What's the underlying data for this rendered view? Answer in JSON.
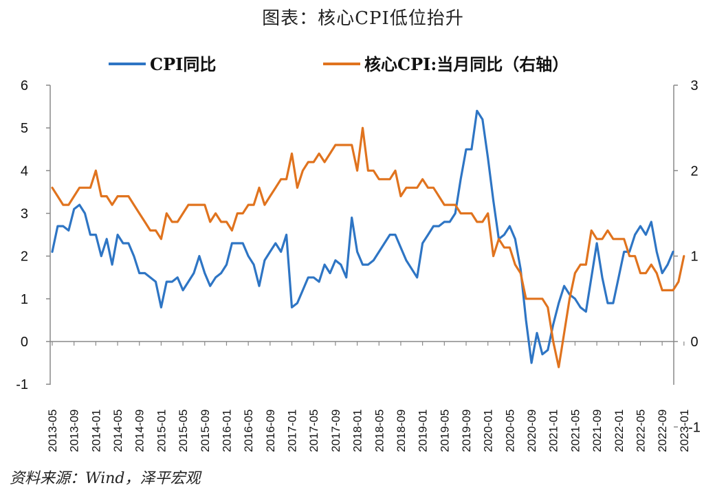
{
  "title": "图表：核心CPI低位抬升",
  "source": "资料来源：Wind，泽平宏观",
  "chart_data": {
    "type": "line",
    "title": "图表：核心CPI低位抬升",
    "legend_placement": "top",
    "grid": false,
    "colors": {
      "cpi": "#2E75C4",
      "core": "#E0731E"
    },
    "x_tick_labels": [
      "2013-05",
      "2013-09",
      "2014-01",
      "2014-05",
      "2014-09",
      "2015-01",
      "2015-05",
      "2015-09",
      "2016-01",
      "2016-05",
      "2016-09",
      "2017-01",
      "2017-05",
      "2017-09",
      "2018-01",
      "2018-05",
      "2018-09",
      "2019-01",
      "2019-05",
      "2019-09",
      "2020-01",
      "2020-05",
      "2020-09",
      "2021-01",
      "2021-05",
      "2021-09",
      "2022-01",
      "2022-05",
      "2022-09",
      "2023-01"
    ],
    "y_left": {
      "min": -1,
      "max": 6,
      "ticks": [
        "-1",
        "0",
        "1",
        "2",
        "3",
        "4",
        "5",
        "6"
      ]
    },
    "y_right": {
      "min": -1,
      "max": 3,
      "ticks": [
        "-1",
        "0",
        "1",
        "2",
        "3"
      ]
    },
    "series": [
      {
        "name": "CPI同比",
        "axis": "left",
        "values": [
          2.1,
          2.7,
          2.7,
          2.6,
          3.1,
          3.2,
          3.0,
          2.5,
          2.5,
          2.0,
          2.4,
          1.8,
          2.5,
          2.3,
          2.3,
          2.0,
          1.6,
          1.6,
          1.5,
          1.4,
          0.8,
          1.4,
          1.4,
          1.5,
          1.2,
          1.4,
          1.6,
          2.0,
          1.6,
          1.3,
          1.5,
          1.6,
          1.8,
          2.3,
          2.3,
          2.3,
          2.0,
          1.8,
          1.3,
          1.9,
          2.1,
          2.3,
          2.1,
          2.5,
          0.8,
          0.9,
          1.2,
          1.5,
          1.5,
          1.4,
          1.8,
          1.6,
          1.9,
          1.8,
          1.5,
          2.9,
          2.1,
          1.8,
          1.8,
          1.9,
          2.1,
          2.3,
          2.5,
          2.5,
          2.2,
          1.9,
          1.7,
          1.5,
          2.3,
          2.5,
          2.7,
          2.7,
          2.8,
          2.8,
          3.0,
          3.8,
          4.5,
          4.5,
          5.4,
          5.2,
          4.3,
          3.3,
          2.4,
          2.5,
          2.7,
          2.4,
          1.7,
          0.5,
          -0.5,
          0.2,
          -0.3,
          -0.2,
          0.4,
          0.9,
          1.3,
          1.1,
          1.0,
          0.8,
          0.7,
          1.5,
          2.3,
          1.5,
          0.9,
          0.9,
          1.5,
          2.1,
          2.1,
          2.5,
          2.7,
          2.5,
          2.8,
          2.1,
          1.6,
          1.8,
          2.1
        ]
      },
      {
        "name": "核心CPI:当月同比（右轴）",
        "axis": "right",
        "values": [
          1.8,
          1.7,
          1.6,
          1.6,
          1.7,
          1.8,
          1.8,
          1.8,
          2.0,
          1.7,
          1.7,
          1.6,
          1.7,
          1.7,
          1.7,
          1.6,
          1.5,
          1.4,
          1.3,
          1.3,
          1.2,
          1.5,
          1.4,
          1.4,
          1.5,
          1.6,
          1.6,
          1.6,
          1.6,
          1.4,
          1.5,
          1.4,
          1.4,
          1.3,
          1.5,
          1.5,
          1.6,
          1.6,
          1.8,
          1.6,
          1.7,
          1.8,
          1.9,
          1.9,
          2.2,
          1.8,
          2.0,
          2.1,
          2.1,
          2.2,
          2.1,
          2.2,
          2.3,
          2.3,
          2.3,
          2.3,
          2.0,
          2.5,
          2.0,
          2.0,
          1.9,
          1.9,
          1.9,
          2.0,
          1.7,
          1.8,
          1.8,
          1.8,
          1.9,
          1.8,
          1.8,
          1.7,
          1.6,
          1.6,
          1.6,
          1.5,
          1.5,
          1.5,
          1.4,
          1.4,
          1.5,
          1.0,
          1.2,
          1.1,
          1.1,
          0.9,
          0.8,
          0.5,
          0.5,
          0.5,
          0.5,
          0.4,
          0.0,
          -0.3,
          0.1,
          0.5,
          0.8,
          0.9,
          0.9,
          1.3,
          1.2,
          1.2,
          1.3,
          1.2,
          1.2,
          1.2,
          1.0,
          1.0,
          0.8,
          0.8,
          0.9,
          0.8,
          0.6,
          0.6,
          0.6,
          0.7,
          1.0
        ]
      }
    ]
  }
}
